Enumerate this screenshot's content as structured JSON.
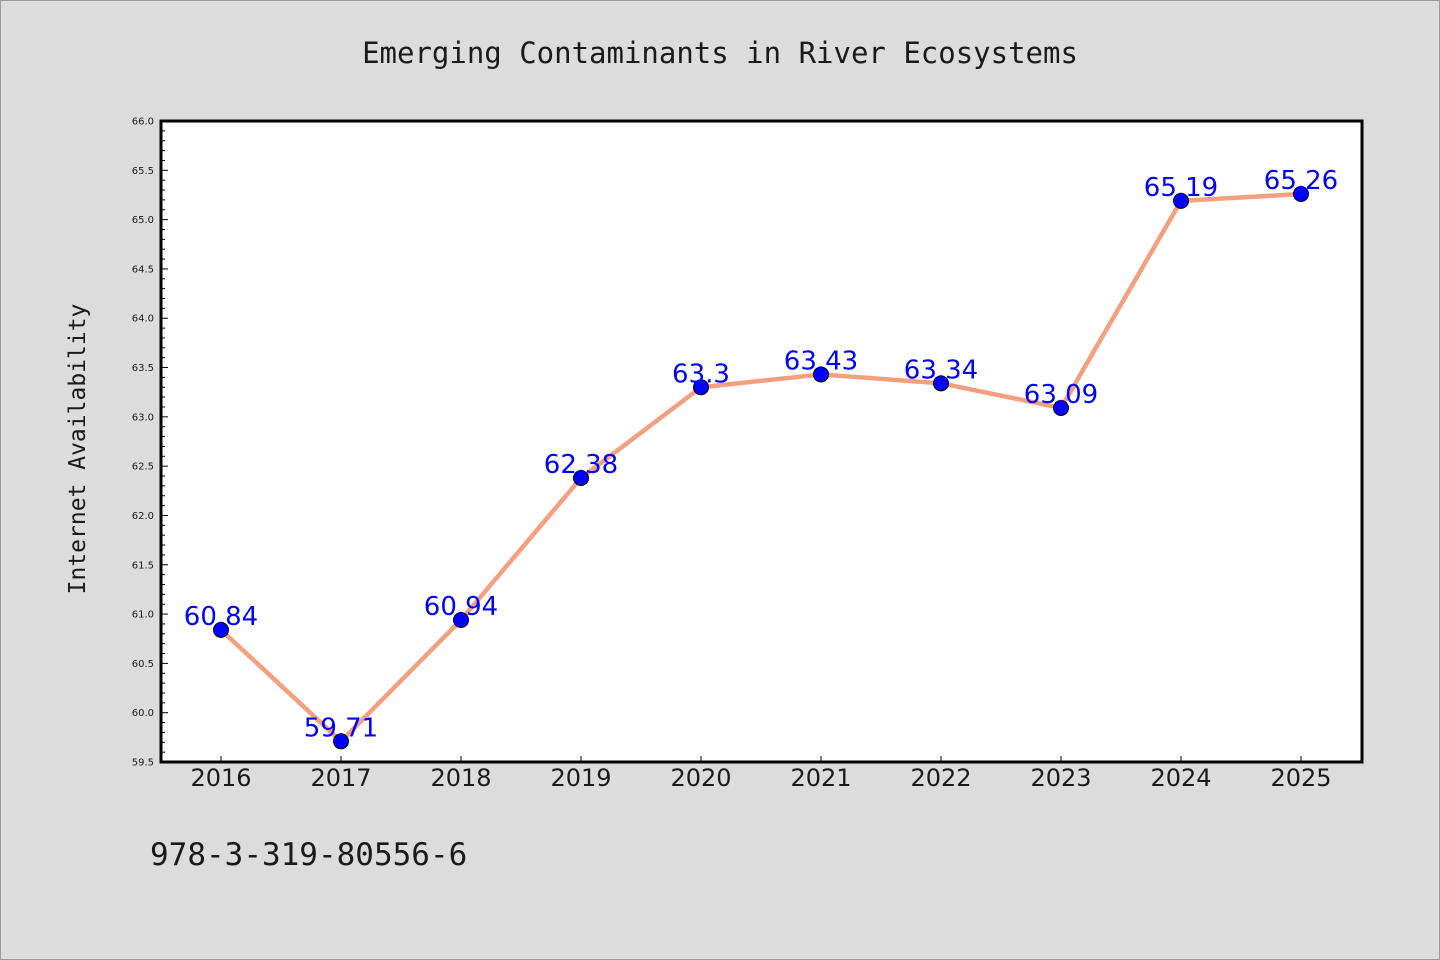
{
  "chart_data": {
    "type": "line",
    "title": "Emerging Contaminants in River Ecosystems",
    "xlabel": "",
    "ylabel": "Internet Availability",
    "categories": [
      "2016",
      "2017",
      "2018",
      "2019",
      "2020",
      "2021",
      "2022",
      "2023",
      "2024",
      "2025"
    ],
    "series": [
      {
        "values": [
          60.84,
          59.71,
          60.94,
          62.38,
          63.3,
          63.43,
          63.34,
          63.09,
          65.19,
          65.26
        ],
        "labels": [
          "60.84",
          "59.71",
          "60.94",
          "62.38",
          "63.3",
          "63.43",
          "63.34",
          "63.09",
          "65.19",
          "65.26"
        ],
        "line_color": "#f4a07f",
        "marker_color": "#0000ff",
        "label_color": "#0000ff"
      }
    ],
    "ylim": [
      59.5,
      66.0
    ],
    "yticks": [
      "59.5",
      "60.0",
      "60.5",
      "61.0",
      "61.5",
      "62.0",
      "62.5",
      "63.0",
      "63.5",
      "64.0",
      "64.5",
      "65.0",
      "65.5",
      "66.0"
    ],
    "grid": false,
    "legend": "none"
  },
  "footer": {
    "text": "978-3-319-80556-6"
  },
  "colors": {
    "figure_background": "#dcdcdc",
    "plot_background": "#ffffff",
    "axis": "#000000"
  }
}
